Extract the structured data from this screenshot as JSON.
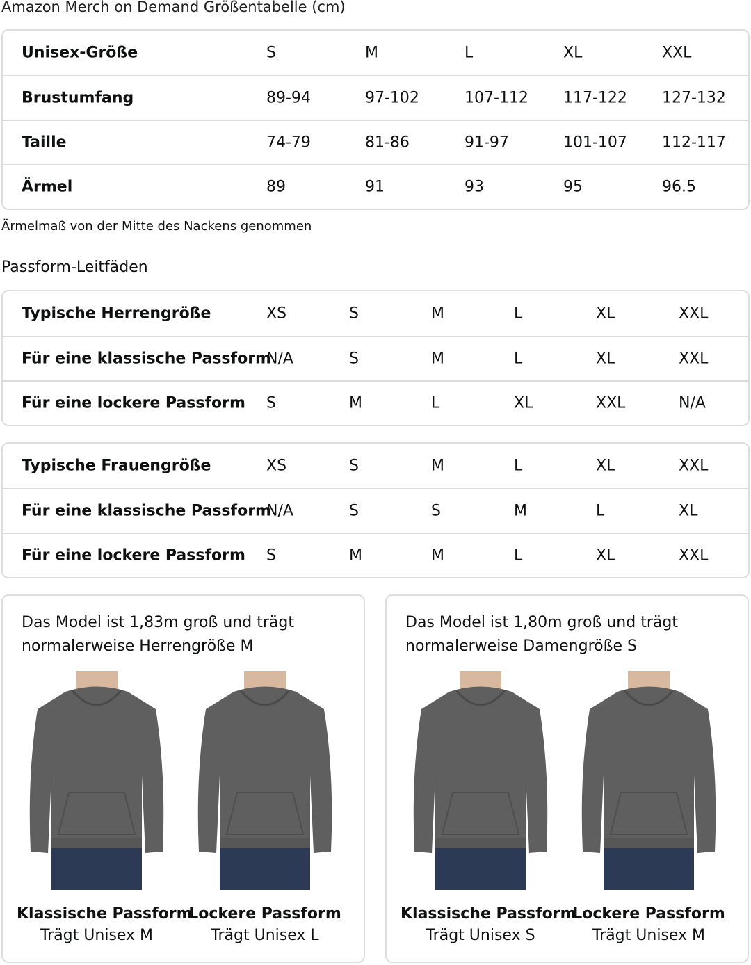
{
  "title": "Amazon Merch on Demand Größentabelle (cm)",
  "size_table": {
    "rows": [
      [
        "Unisex-Größe",
        "S",
        "M",
        "L",
        "XL",
        "XXL"
      ],
      [
        "Brustumfang",
        "89-94",
        "97-102",
        "107-112",
        "117-122",
        "127-132"
      ],
      [
        "Taille",
        "74-79",
        "81-86",
        "91-97",
        "101-107",
        "112-117"
      ],
      [
        "Ärmel",
        "89",
        "91",
        "93",
        "95",
        "96.5"
      ]
    ]
  },
  "note": "Ärmelmaß von der Mitte des Nackens genommen",
  "fit_heading": "Passform-Leitfäden",
  "men_table": {
    "rows": [
      [
        "Typische Herrengröße",
        "XS",
        "S",
        "M",
        "L",
        "XL",
        "XXL"
      ],
      [
        "Für eine klassische Passform",
        "N/A",
        "S",
        "M",
        "L",
        "XL",
        "XXL"
      ],
      [
        "Für eine lockere Passform",
        "S",
        "M",
        "L",
        "XL",
        "XXL",
        "N/A"
      ]
    ]
  },
  "women_table": {
    "rows": [
      [
        "Typische Frauengröße",
        "XS",
        "S",
        "M",
        "L",
        "XL",
        "XXL"
      ],
      [
        "Für eine klassische Passform",
        "N/A",
        "S",
        "S",
        "M",
        "L",
        "XL"
      ],
      [
        "Für eine lockere Passform",
        "S",
        "M",
        "M",
        "L",
        "XL",
        "XXL"
      ]
    ]
  },
  "cards": [
    {
      "desc": "Das Model ist 1,83m groß und trägt normalerweise Herrengröße M",
      "figures": [
        {
          "fit": "Klassische Passform",
          "wears": "Trägt Unisex M"
        },
        {
          "fit": "Lockere Passform",
          "wears": "Trägt Unisex L"
        }
      ]
    },
    {
      "desc": "Das Model ist 1,80m groß und trägt normalerweise Damengröße S",
      "figures": [
        {
          "fit": "Klassische Passform",
          "wears": "Trägt Unisex S"
        },
        {
          "fit": "Lockere Passform",
          "wears": "Trägt Unisex M"
        }
      ]
    }
  ],
  "colors": {
    "hoodie": "#5f5f5f",
    "jeans": "#2d3a55",
    "border": "#dddddd"
  }
}
